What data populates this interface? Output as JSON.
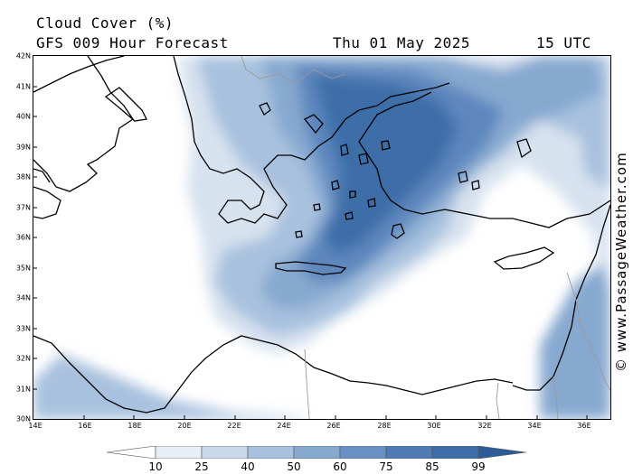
{
  "header": {
    "title": "Cloud Cover (%)",
    "subtitle": "GFS 009 Hour Forecast",
    "valid_date": "Thu 01 May 2025",
    "valid_time": "15 UTC"
  },
  "credit": "© www.PassageWeather.com",
  "map": {
    "lat_labels": [
      "42N",
      "41N",
      "40N",
      "39N",
      "38N",
      "37N",
      "36N",
      "35N",
      "34N",
      "33N",
      "32N",
      "31N",
      "30N"
    ],
    "lon_labels": [
      "14E",
      "16E",
      "18E",
      "20E",
      "22E",
      "24E",
      "26E",
      "28E",
      "30E",
      "32E",
      "34E",
      "36E"
    ],
    "cloud_fill_color": "#3e6ea8",
    "land_outline_color": "#000000",
    "border_color": "#9a9a9a"
  },
  "legend": {
    "values": [
      "10",
      "25",
      "40",
      "50",
      "60",
      "75",
      "85",
      "99"
    ],
    "colors": [
      "#ffffff",
      "#e8eef6",
      "#c9d8ea",
      "#a8c1de",
      "#87a9d0",
      "#6890c2",
      "#4f7ab4",
      "#3e6ea8",
      "#2e5c96"
    ]
  }
}
